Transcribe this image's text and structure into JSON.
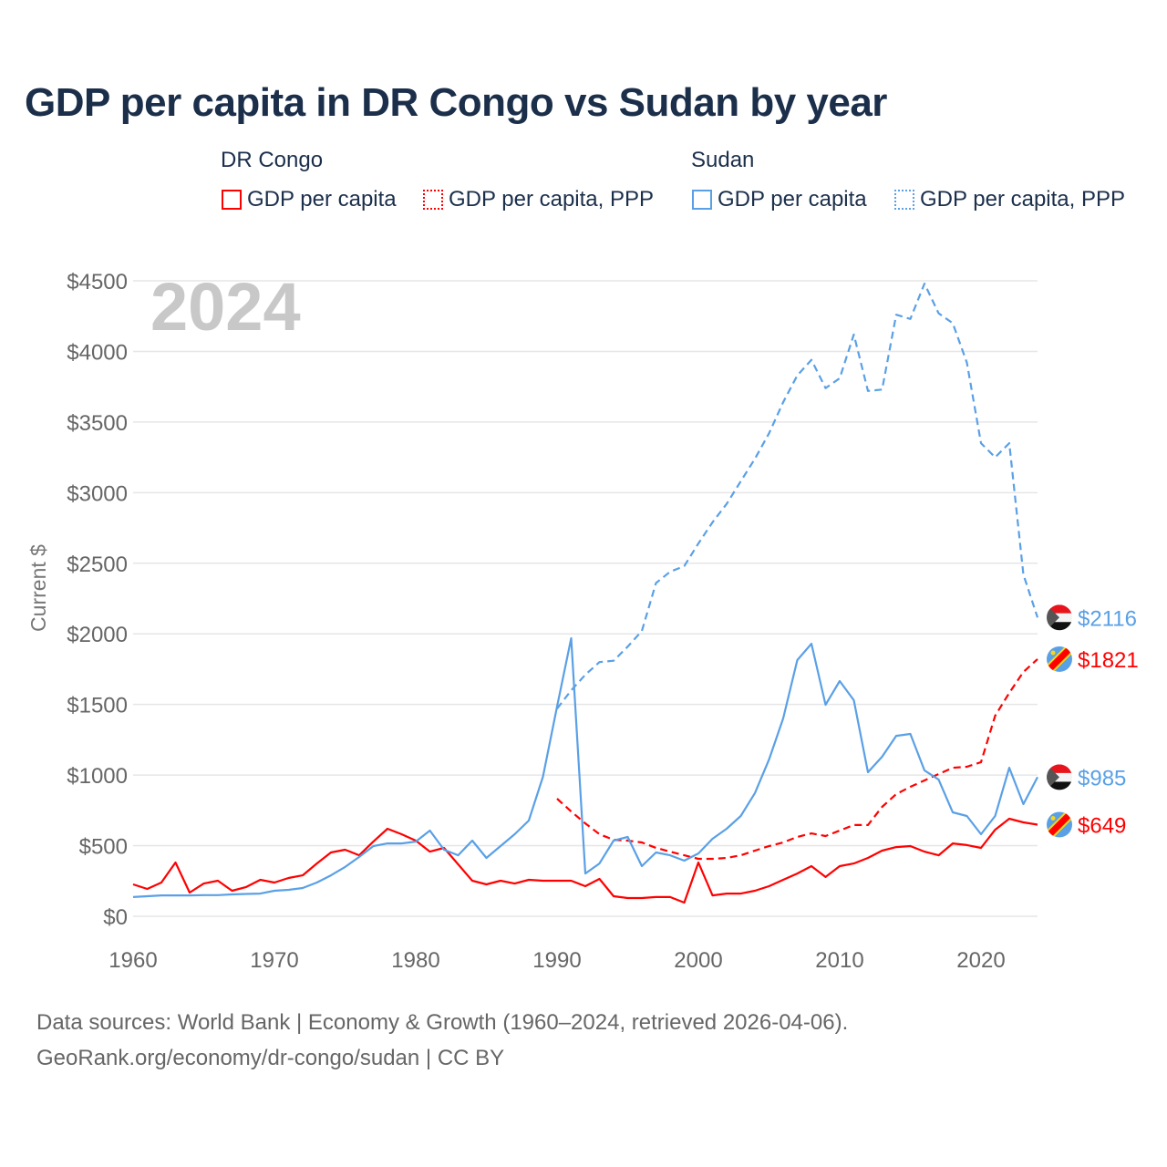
{
  "title": "GDP per capita in DR Congo vs Sudan by year",
  "legend": {
    "groups": [
      {
        "name": "DR Congo",
        "items": [
          "GDP per capita",
          "GDP per capita, PPP"
        ]
      },
      {
        "name": "Sudan",
        "items": [
          "GDP per capita",
          "GDP per capita, PPP"
        ]
      }
    ]
  },
  "year_watermark": "2024",
  "footer": {
    "line1": "Data sources: World Bank | Economy & Growth (1960–2024, retrieved 2026-04-06).",
    "line2": "GeoRank.org/economy/dr-congo/sudan | CC BY"
  },
  "colors": {
    "drc": "#ff0000",
    "sudan": "#5aa0e6"
  },
  "chart_data": {
    "type": "line",
    "title": "GDP per capita in DR Congo vs Sudan by year",
    "xlabel": "",
    "ylabel": "Current $",
    "xlim": [
      1960,
      2024
    ],
    "ylim": [
      0,
      4500
    ],
    "xticks": [
      "1960",
      "1970",
      "1980",
      "1990",
      "2000",
      "2010",
      "2020"
    ],
    "yticks": [
      "$0",
      "$500",
      "$1000",
      "$1500",
      "$2000",
      "$2500",
      "$3000",
      "$3500",
      "$4000",
      "$4500"
    ],
    "grid": true,
    "legend_position": "top",
    "series": [
      {
        "name": "DR Congo GDP per capita",
        "country": "drc",
        "style": "solid",
        "start": 1960,
        "end_label": "$649",
        "values": [
          226,
          194,
          239,
          381,
          168,
          232,
          252,
          181,
          207,
          258,
          239,
          271,
          290,
          374,
          452,
          471,
          432,
          529,
          620,
          581,
          536,
          458,
          484,
          368,
          252,
          226,
          252,
          232,
          258,
          252,
          252,
          252,
          213,
          265,
          142,
          129,
          129,
          136,
          136,
          97,
          381,
          148,
          161,
          161,
          181,
          213,
          258,
          303,
          355,
          278,
          355,
          374,
          413,
          465,
          490,
          497,
          458,
          432,
          516,
          504,
          484,
          613,
          691,
          665,
          649
        ]
      },
      {
        "name": "DR Congo GDP per capita, PPP",
        "country": "drc",
        "style": "dashed",
        "start": 1990,
        "end_label": "$1821",
        "values": [
          833,
          742,
          658,
          581,
          542,
          536,
          523,
          484,
          458,
          432,
          407,
          407,
          413,
          432,
          465,
          497,
          523,
          562,
          587,
          568,
          607,
          646,
          646,
          775,
          865,
          917,
          962,
          1007,
          1052,
          1059,
          1091,
          1420,
          1582,
          1730,
          1821
        ]
      },
      {
        "name": "Sudan GDP per capita",
        "country": "sudan",
        "style": "solid",
        "start": 1960,
        "end_label": "$985",
        "values": [
          136,
          142,
          148,
          148,
          148,
          150,
          150,
          155,
          158,
          161,
          181,
          187,
          200,
          239,
          290,
          349,
          420,
          497,
          516,
          516,
          529,
          607,
          471,
          432,
          536,
          413,
          497,
          581,
          678,
          988,
          1485,
          1969,
          303,
          374,
          536,
          562,
          355,
          452,
          432,
          394,
          445,
          549,
          620,
          710,
          872,
          1110,
          1401,
          1814,
          1930,
          1498,
          1666,
          1530,
          1020,
          1130,
          1278,
          1291,
          1033,
          968,
          736,
          710,
          581,
          710,
          1052,
          794,
          985
        ]
      },
      {
        "name": "Sudan GDP per capita, PPP",
        "country": "sudan",
        "style": "dashed",
        "start": 1990,
        "end_label": "$2116",
        "values": [
          1470,
          1600,
          1710,
          1800,
          1810,
          1910,
          2020,
          2360,
          2440,
          2480,
          2640,
          2790,
          2920,
          3080,
          3240,
          3420,
          3640,
          3830,
          3940,
          3740,
          3810,
          4120,
          3720,
          3730,
          4260,
          4230,
          4480,
          4270,
          4200,
          3920,
          3350,
          3250,
          3350,
          2420,
          2116
        ]
      }
    ]
  }
}
